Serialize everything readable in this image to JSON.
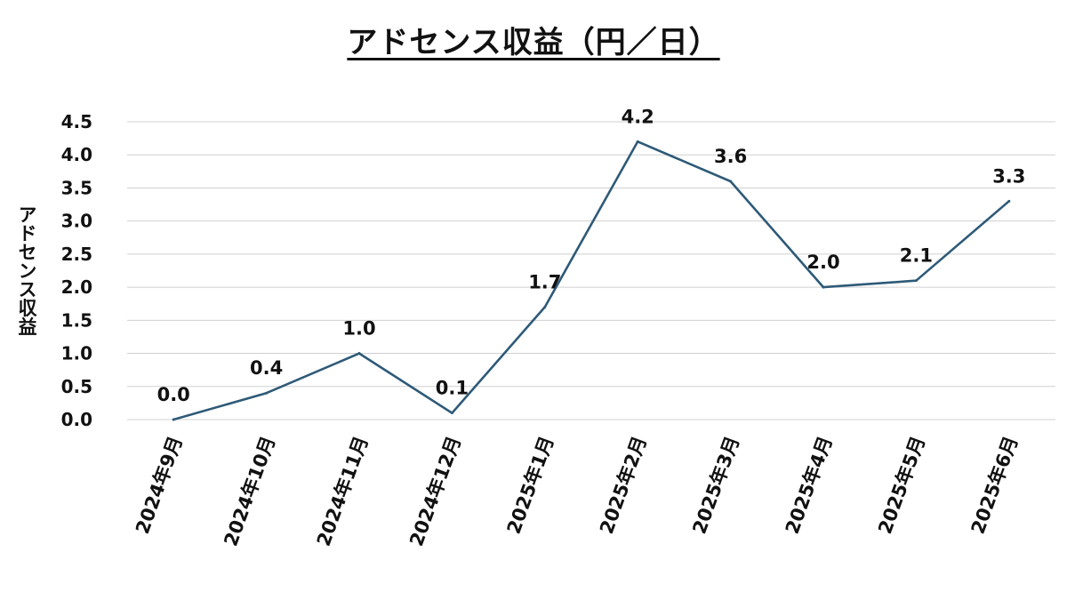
{
  "chart_data": {
    "type": "line",
    "title": "アドセンス収益（円／日）",
    "xlabel": "",
    "ylabel": "アドセンス収益",
    "categories": [
      "2024年9月",
      "2024年10月",
      "2024年11月",
      "2024年12月",
      "2025年1月",
      "2025年2月",
      "2025年3月",
      "2025年4月",
      "2025年5月",
      "2025年6月"
    ],
    "values": [
      0.0,
      0.4,
      1.0,
      0.1,
      1.7,
      4.2,
      3.6,
      2.0,
      2.1,
      3.3
    ],
    "data_labels": [
      "0.0",
      "0.4",
      "1.0",
      "0.1",
      "1.7",
      "4.2",
      "3.6",
      "2.0",
      "2.1",
      "3.3"
    ],
    "ylim": [
      0,
      4.5
    ],
    "y_ticks": [
      "0.0",
      "0.5",
      "1.0",
      "1.5",
      "2.0",
      "2.5",
      "3.0",
      "3.5",
      "4.0",
      "4.5"
    ],
    "grid": true,
    "legend": "none",
    "line_color": "#2e5a78"
  }
}
